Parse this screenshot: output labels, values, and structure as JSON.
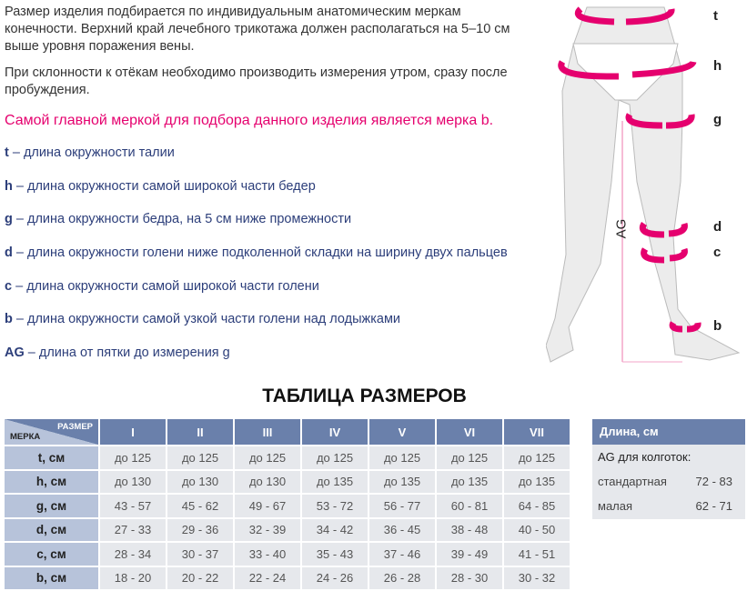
{
  "intro": [
    "Размер изделия подбирается по индивидуальным анатомическим меркам конечности. Верхний край лечебного трикотажа должен располагаться на 5–10 см выше уровня поражения вены.",
    "При склонности к отёкам необходимо производить измерения утром, сразу после пробуждения."
  ],
  "main_note": "Самой главной меркой для подбора данного изделия является мерка b.",
  "definitions": [
    {
      "key": "t",
      "text": " – длина окружности талии"
    },
    {
      "key": "h",
      "text": " – длина окружности самой широкой части бедер"
    },
    {
      "key": "g",
      "text": " – длина окружности бедра, на 5 см ниже промежности"
    },
    {
      "key": "d",
      "text": " – длина окружности голени ниже подколенной складки на ширину двух пальцев"
    },
    {
      "key": "c",
      "text": " – длина окружности самой широкой части голени"
    },
    {
      "key": "b",
      "text": " – длина окружности самой узкой части голени над лодыжками"
    },
    {
      "key": "AG",
      "text": " – длина от пятки до измерения g"
    }
  ],
  "diagram_labels": {
    "t": "t",
    "h": "h",
    "g": "g",
    "d": "d",
    "c": "c",
    "b": "b",
    "ag": "AG"
  },
  "table_title": "ТАБЛИЦА РАЗМЕРОВ",
  "size_table": {
    "corner_size": "РАЗМЕР",
    "corner_measure": "МЕРКА",
    "sizes": [
      "I",
      "II",
      "III",
      "IV",
      "V",
      "VI",
      "VII"
    ],
    "rows": [
      {
        "label": "t, см",
        "values": [
          "до 125",
          "до 125",
          "до 125",
          "до 125",
          "до 125",
          "до 125",
          "до 125"
        ]
      },
      {
        "label": "h, см",
        "values": [
          "до 130",
          "до 130",
          "до 130",
          "до 135",
          "до 135",
          "до 135",
          "до 135"
        ]
      },
      {
        "label": "g, см",
        "values": [
          "43 - 57",
          "45 - 62",
          "49 - 67",
          "53 - 72",
          "56 - 77",
          "60 - 81",
          "64 - 85"
        ]
      },
      {
        "label": "d, см",
        "values": [
          "27 - 33",
          "29 - 36",
          "32 - 39",
          "34 - 42",
          "36 - 45",
          "38 - 48",
          "40 - 50"
        ]
      },
      {
        "label": "c, см",
        "values": [
          "28 - 34",
          "30 - 37",
          "33 - 40",
          "35 - 43",
          "37 - 46",
          "39 - 49",
          "41 - 51"
        ]
      },
      {
        "label": "b, см",
        "values": [
          "18 - 20",
          "20 - 22",
          "22 - 24",
          "24 - 26",
          "26 - 28",
          "28 - 30",
          "30 - 32"
        ]
      }
    ]
  },
  "length_table": {
    "header": "Длина, см",
    "subheader": "AG для колготок:",
    "rows": [
      {
        "label": "стандартная",
        "value": "72 - 83"
      },
      {
        "label": "малая",
        "value": "62 - 71"
      }
    ]
  },
  "colors": {
    "accent": "#e5006e",
    "header": "#6a80ab",
    "label_cell": "#b7c3da",
    "cell": "#e6e8ec",
    "text_blue": "#2c3e7a"
  }
}
